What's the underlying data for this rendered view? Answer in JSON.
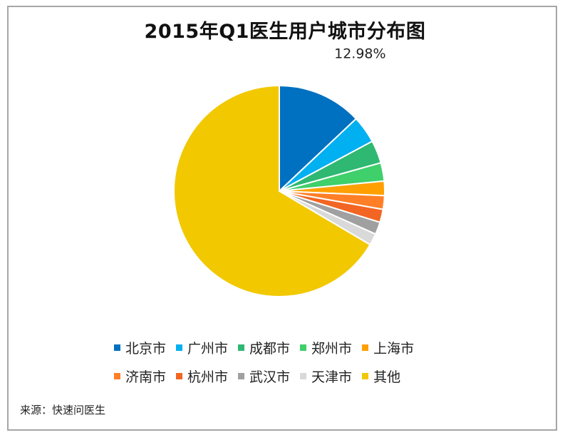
{
  "title": "2015年Q1医生用户城市分布图",
  "source": "来源：快速问医生",
  "chart_data": {
    "type": "pie",
    "start_angle_deg": 0,
    "direction": "clockwise",
    "slices": [
      {
        "label": "北京市",
        "value": 12.98,
        "color": "#0070c0",
        "data_label": "12.98%"
      },
      {
        "label": "广州市",
        "value": 4.2,
        "color": "#00b0f0",
        "data_label": ""
      },
      {
        "label": "成都市",
        "value": 3.5,
        "color": "#2eb872",
        "data_label": ""
      },
      {
        "label": "郑州市",
        "value": 2.8,
        "color": "#3fcf6b",
        "data_label": ""
      },
      {
        "label": "上海市",
        "value": 2.2,
        "color": "#ffa000",
        "data_label": ""
      },
      {
        "label": "济南市",
        "value": 2.1,
        "color": "#ff7f27",
        "data_label": ""
      },
      {
        "label": "杭州市",
        "value": 2.0,
        "color": "#f26522",
        "data_label": ""
      },
      {
        "label": "武汉市",
        "value": 1.9,
        "color": "#a0a0a0",
        "data_label": ""
      },
      {
        "label": "天津市",
        "value": 1.8,
        "color": "#d9d9d9",
        "data_label": ""
      },
      {
        "label": "其他",
        "value": 66.52,
        "color": "#f2c800",
        "data_label": ""
      }
    ],
    "legend_position": "bottom"
  }
}
